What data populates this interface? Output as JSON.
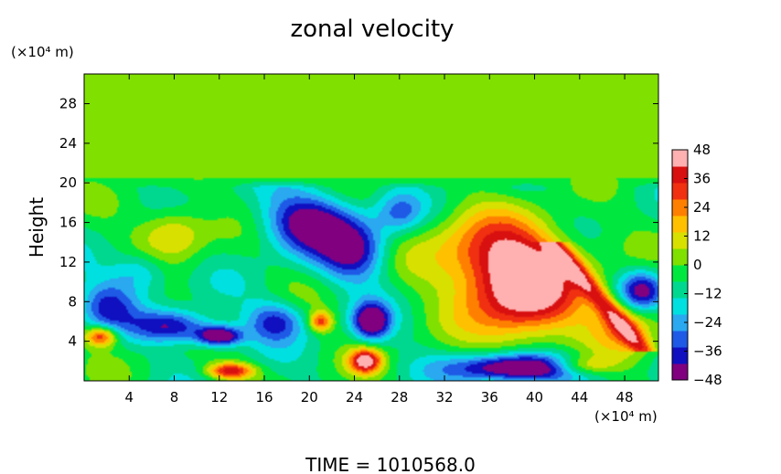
{
  "chart_data": {
    "type": "heatmap",
    "title": "zonal velocity",
    "ylabel": "Height",
    "y_unit": "(×10⁴ m)",
    "x_unit": "(×10⁴ m)",
    "footer": "TIME  =  1010568.0",
    "xlim": [
      0,
      51
    ],
    "ylim": [
      0,
      31
    ],
    "x_ticks": [
      "4",
      "8",
      "12",
      "16",
      "20",
      "24",
      "28",
      "32",
      "36",
      "40",
      "44",
      "48"
    ],
    "y_ticks": [
      "4",
      "8",
      "12",
      "16",
      "20",
      "24",
      "28"
    ],
    "colorbar": {
      "range": [
        -48,
        48
      ],
      "ticks": [
        "48",
        "36",
        "24",
        "12",
        "0",
        "−12",
        "−24",
        "−36",
        "−48"
      ],
      "colors": [
        "#800080",
        "#1010c0",
        "#1e5ae6",
        "#2aa8f0",
        "#00e0e0",
        "#00d890",
        "#00e840",
        "#80e000",
        "#d8e000",
        "#ffc000",
        "#ff8000",
        "#f03010",
        "#d81010",
        "#ffb0b0"
      ]
    },
    "background_value": 0,
    "features": [
      {
        "x": 39,
        "y": 9,
        "value": 55,
        "sx": 5,
        "sy": 5
      },
      {
        "x": 48,
        "y": 6,
        "value": 28,
        "sx": 3,
        "sy": 3
      },
      {
        "x": 36,
        "y": 13,
        "value": 30,
        "sx": 6,
        "sy": 4
      },
      {
        "x": 39,
        "y": 1.3,
        "value": -58,
        "sx": 6,
        "sy": 1.4
      },
      {
        "x": 20,
        "y": 16,
        "value": -42,
        "sx": 4,
        "sy": 3
      },
      {
        "x": 24,
        "y": 13,
        "value": -36,
        "sx": 3,
        "sy": 3
      },
      {
        "x": 25.5,
        "y": 6,
        "value": -48,
        "sx": 1.6,
        "sy": 1.8
      },
      {
        "x": 12,
        "y": 4.5,
        "value": -52,
        "sx": 2,
        "sy": 1
      },
      {
        "x": 8,
        "y": 5.5,
        "value": -36,
        "sx": 3.5,
        "sy": 1.6
      },
      {
        "x": 2,
        "y": 7.5,
        "value": -28,
        "sx": 2.5,
        "sy": 2.5
      },
      {
        "x": 1.5,
        "y": 4.5,
        "value": 42,
        "sx": 1.4,
        "sy": 1
      },
      {
        "x": 8,
        "y": 15,
        "value": 24,
        "sx": 3,
        "sy": 2.5
      },
      {
        "x": 13,
        "y": 1,
        "value": 45,
        "sx": 2,
        "sy": 0.8
      },
      {
        "x": 25,
        "y": 2,
        "value": 50,
        "sx": 1.4,
        "sy": 1.2
      },
      {
        "x": 21,
        "y": 6,
        "value": 36,
        "sx": 1,
        "sy": 1
      },
      {
        "x": 49.5,
        "y": 9,
        "value": -42,
        "sx": 2,
        "sy": 2
      },
      {
        "x": 17,
        "y": 6,
        "value": -30,
        "sx": 2.5,
        "sy": 2
      },
      {
        "x": 44,
        "y": 1.5,
        "value": 30,
        "sx": 3,
        "sy": 1
      },
      {
        "x": 28,
        "y": 17,
        "value": -20,
        "sx": 2,
        "sy": 2
      },
      {
        "x": 5,
        "y": 11,
        "value": -20,
        "sx": 2.5,
        "sy": 2
      }
    ]
  }
}
